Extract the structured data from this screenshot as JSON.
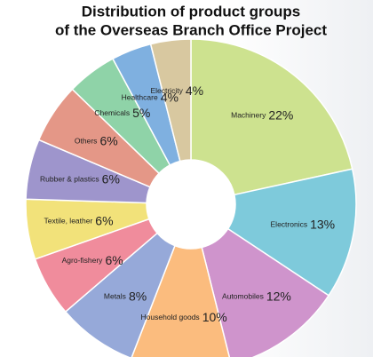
{
  "chart_data": {
    "type": "donut",
    "title": [
      "Distribution of product groups",
      "of the Overseas Branch Office Project"
    ],
    "categories": [
      "Machinery",
      "Electronics",
      "Automobiles",
      "Household goods",
      "Metals",
      "Agro-fishery",
      "Textile, leather",
      "Rubber & plastics",
      "Others",
      "Chemicals",
      "Healthcare",
      "Electricity"
    ],
    "values": [
      22,
      13,
      12,
      10,
      8,
      6,
      6,
      6,
      6,
      5,
      4,
      4
    ],
    "value_labels": [
      "22%",
      "13%",
      "12%",
      "10%",
      "8%",
      "6%",
      "6%",
      "6%",
      "6%",
      "5%",
      "4%",
      "4%"
    ],
    "colors": [
      "#cde28f",
      "#7ecadb",
      "#cf94cc",
      "#fbbc7e",
      "#96a9d9",
      "#f08c9c",
      "#f2e27a",
      "#9e95cc",
      "#e49787",
      "#8fd3a8",
      "#7fb0e0",
      "#d8c8a0"
    ]
  }
}
